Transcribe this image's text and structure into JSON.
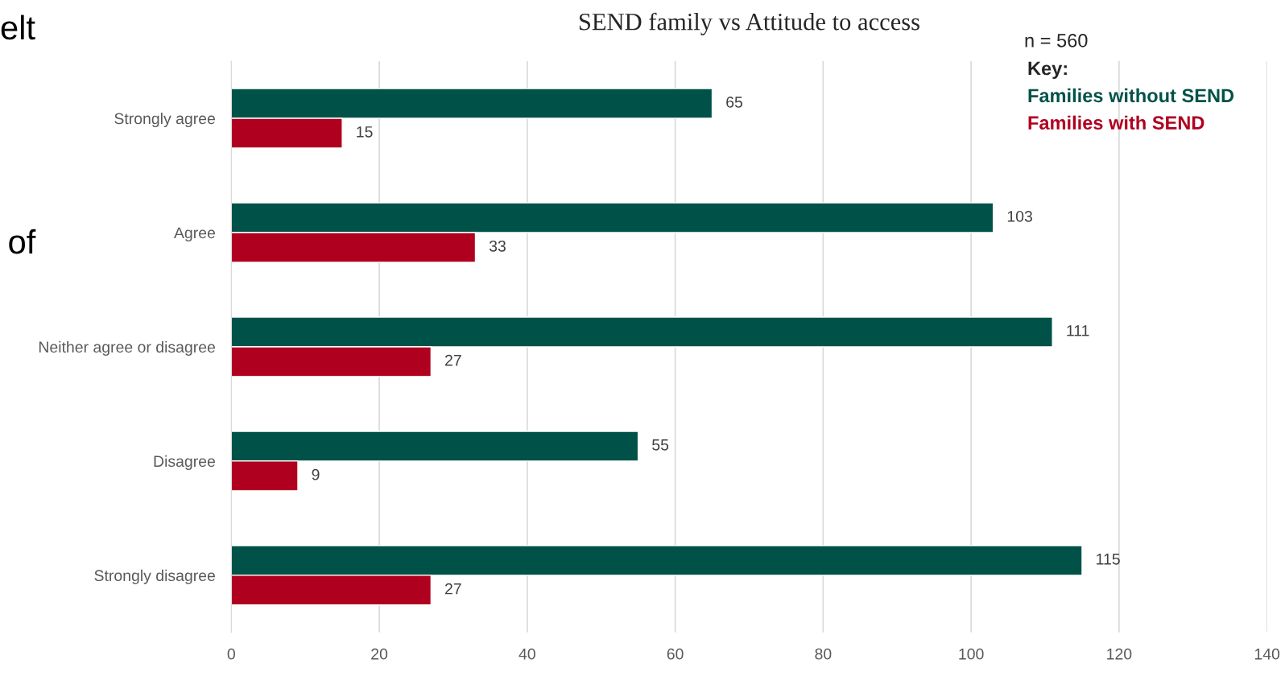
{
  "chart_data": {
    "type": "bar",
    "orientation": "horizontal",
    "title": "SEND family vs Attitude to access",
    "categories": [
      "Strongly agree",
      "Agree",
      "Neither agree or disagree",
      "Disagree",
      "Strongly disagree"
    ],
    "series": [
      {
        "name": "Families without SEND",
        "color": "#005248",
        "values": [
          65,
          103,
          111,
          55,
          115
        ]
      },
      {
        "name": "Families with SEND",
        "color": "#b00020",
        "values": [
          15,
          33,
          27,
          9,
          27
        ]
      }
    ],
    "xlim": [
      0,
      140
    ],
    "xticks": [
      0,
      20,
      40,
      60,
      80,
      100,
      120,
      140
    ],
    "grid": "x",
    "data_labels": true,
    "legend": "top right",
    "legend_title": "Key:",
    "annotations": [
      "elt",
      "of",
      "n = 560"
    ]
  }
}
